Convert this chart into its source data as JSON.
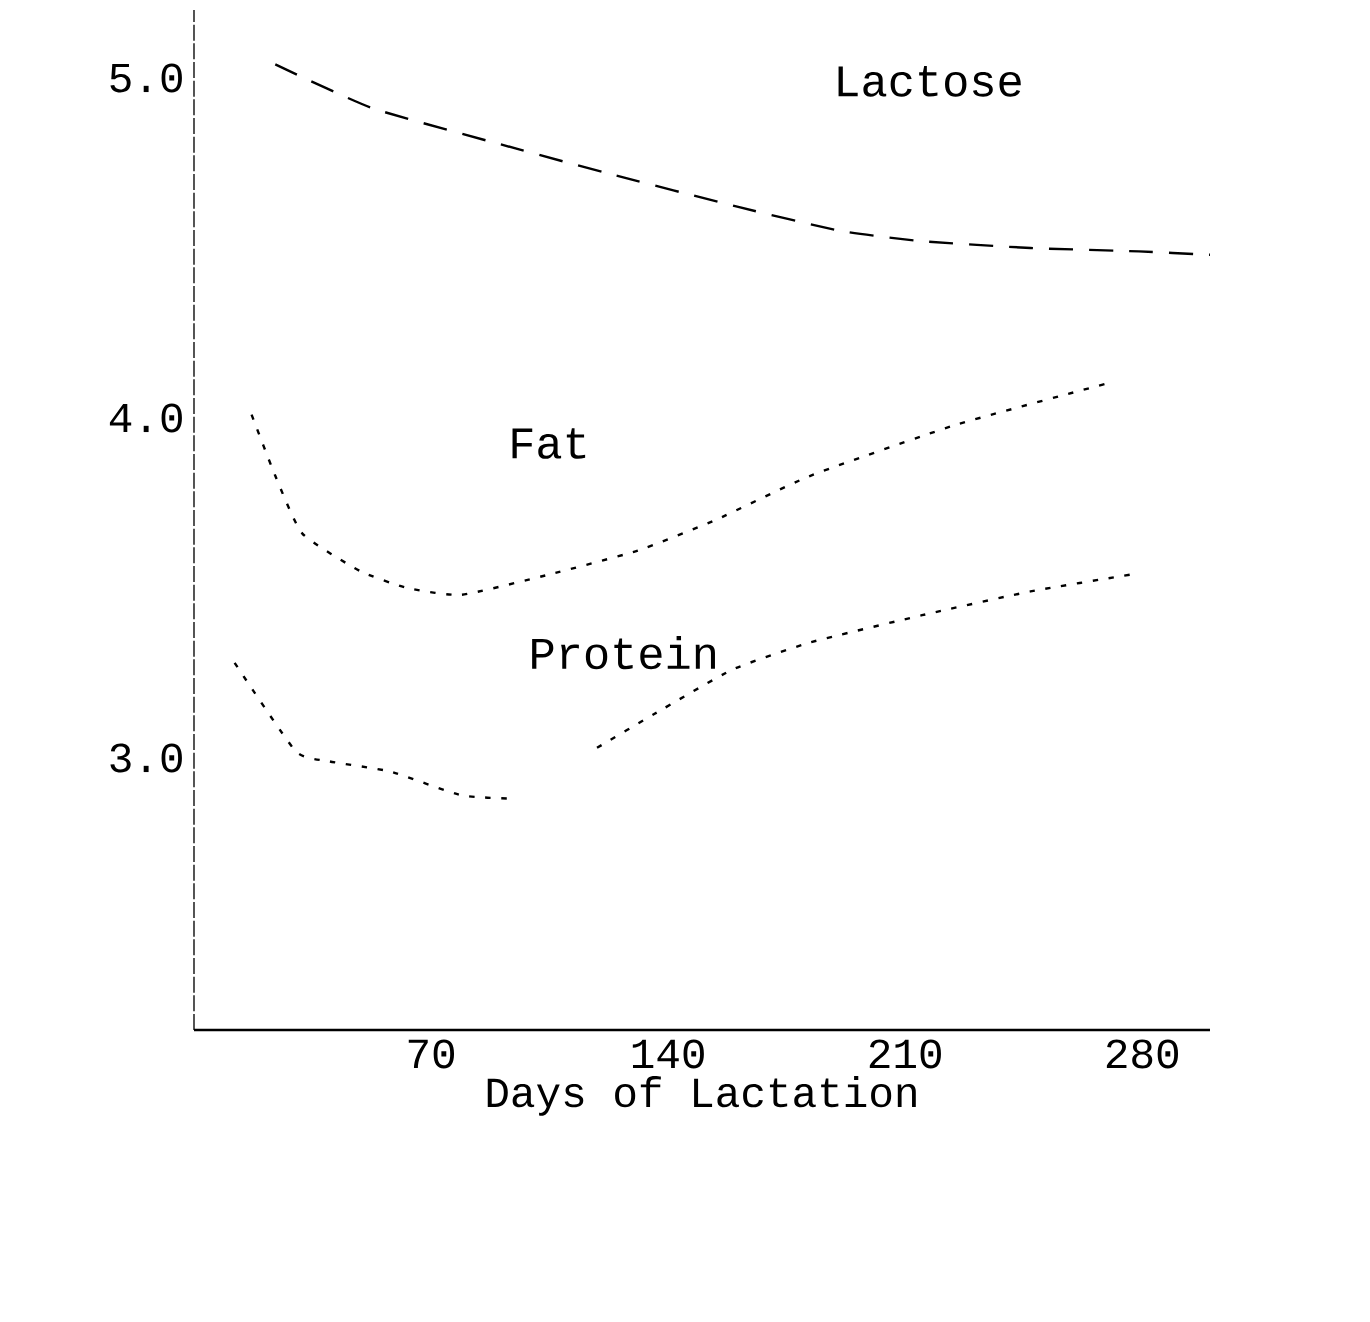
{
  "chart_data": {
    "type": "line",
    "xlabel": "Days of Lactation",
    "xlim": [
      0,
      300
    ],
    "ylim": [
      2.2,
      5.2
    ],
    "xticks": [
      70,
      140,
      210,
      280
    ],
    "yticks": [
      {
        "value": 3.0,
        "label": "3.0"
      },
      {
        "value": 4.0,
        "label": "4.0"
      },
      {
        "value": 5.0,
        "label": "5.0"
      }
    ],
    "grid": false,
    "legend": false,
    "marker": "none",
    "series": [
      {
        "name": "Lactose",
        "color": "#000000",
        "line_style": "dashed",
        "x": [
          24,
          53,
          96,
          122,
          161,
          191,
          215,
          247,
          279,
          300
        ],
        "values": [
          5.04,
          4.91,
          4.79,
          4.72,
          4.62,
          4.55,
          4.52,
          4.5,
          4.49,
          4.48
        ]
      },
      {
        "name": "Fat",
        "color": "#000000",
        "line_style": "dotted",
        "x": [
          17,
          24,
          32,
          49,
          63,
          79,
          105,
          131,
          154,
          182,
          225,
          269
        ],
        "values": [
          4.01,
          3.83,
          3.66,
          3.55,
          3.5,
          3.48,
          3.54,
          3.61,
          3.7,
          3.83,
          3.98,
          4.1
        ]
      },
      {
        "name": "Protein",
        "color": "#000000",
        "line_style": "dotted",
        "x": [
          12,
          30,
          40,
          58,
          79,
          95,
          107,
          119,
          136,
          159,
          182,
          215,
          247,
          277
        ],
        "values": [
          3.28,
          3.02,
          2.99,
          2.96,
          2.89,
          2.88,
          null,
          3.03,
          3.13,
          3.26,
          3.34,
          3.42,
          3.49,
          3.54
        ]
      }
    ]
  }
}
